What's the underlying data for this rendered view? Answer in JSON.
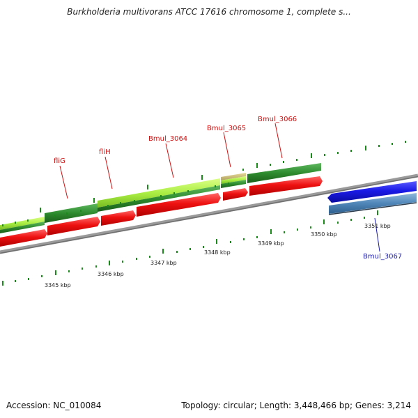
{
  "title": "Burkholderia multivorans ATCC 17616 chromosome 1, complete s...",
  "footer": {
    "accession": "Accession: NC_010084",
    "topology": "Topology: circular; Length: 3,448,466 bp; Genes: 3,214"
  },
  "ticks": {
    "outer_labels": [
      "3345 kbp",
      "3346 kbp",
      "3347 kbp",
      "3348 kbp",
      "3349 kbp",
      "3350 kbp",
      "3351 kbp"
    ]
  },
  "genes": {
    "labels": [
      {
        "name": "fliG",
        "color": "#cc1111"
      },
      {
        "name": "fliH",
        "color": "#cc1111"
      },
      {
        "name": "Bmul_3064",
        "color": "#cc1111"
      },
      {
        "name": "Bmul_3065",
        "color": "#cc1111"
      },
      {
        "name": "Bmul_3066",
        "color": "#cc1111"
      },
      {
        "name": "Bmul_3067",
        "color": "#1a1aa8"
      }
    ]
  },
  "colors": {
    "forward_gene": "#ee1111",
    "reverse_gene": "#1a1ae6",
    "cds_dark_green": "#2e8b2e",
    "cds_light_green": "#aaee44",
    "reverse_cds": "#4f86b8",
    "backbone": "#8a8a8a",
    "tick": "#1a8a1a"
  }
}
